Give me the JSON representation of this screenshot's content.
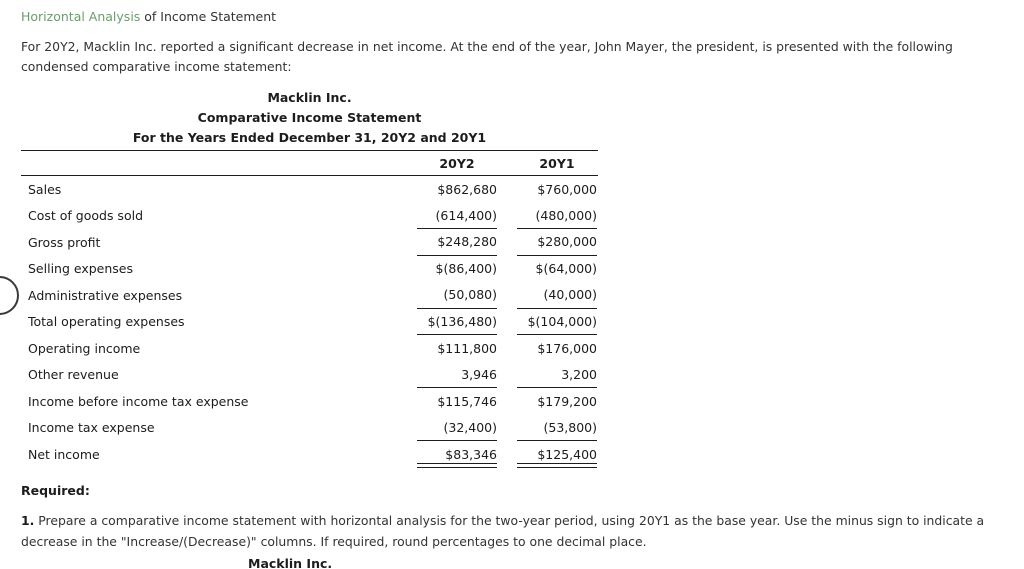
{
  "page": {
    "title_link": "Horizontal Analysis",
    "title_rest": " of Income Statement",
    "intro": "For 20Y2, Macklin Inc. reported a significant decrease in net income. At the end of the year, John Mayer, the president, is presented with the following condensed comparative income statement:"
  },
  "statement": {
    "company": "Macklin Inc.",
    "title": "Comparative Income Statement",
    "period": "For the Years Ended December 31, 20Y2 and 20Y1",
    "columns": [
      "20Y2",
      "20Y1"
    ],
    "rows": [
      {
        "label": "Sales",
        "y2": "$862,680",
        "y1": "$760,000"
      },
      {
        "label": "Cost of goods sold",
        "y2": "(614,400)",
        "y1": "(480,000)"
      },
      {
        "label": "Gross profit",
        "y2": "$248,280",
        "y1": "$280,000"
      },
      {
        "label": "Selling expenses",
        "y2": "$(86,400)",
        "y1": "$(64,000)"
      },
      {
        "label": "Administrative expenses",
        "y2": "(50,080)",
        "y1": "(40,000)"
      },
      {
        "label": "Total operating expenses",
        "y2": "$(136,480)",
        "y1": "$(104,000)"
      },
      {
        "label": "Operating income",
        "y2": "$111,800",
        "y1": "$176,000"
      },
      {
        "label": "Other revenue",
        "y2": "3,946",
        "y1": "3,200"
      },
      {
        "label": "Income before income tax expense",
        "y2": "$115,746",
        "y1": "$179,200"
      },
      {
        "label": "Income tax expense",
        "y2": "(32,400)",
        "y1": "(53,800)"
      },
      {
        "label": "Net income",
        "y2": "$83,346",
        "y1": "$125,400"
      }
    ]
  },
  "required": {
    "heading": "Required:",
    "item_number": "1.",
    "item_text": "Prepare a comparative income statement with horizontal analysis for the two-year period, using 20Y1 as the base year. Use the minus sign to indicate a decrease in the \"Increase/(Decrease)\" columns. If required, round percentages to one decimal place."
  },
  "next_section": {
    "company": "Macklin Inc."
  },
  "colors": {
    "link_green": "#6b9e6b",
    "text": "#333333",
    "rule": "#1c1c1c"
  }
}
